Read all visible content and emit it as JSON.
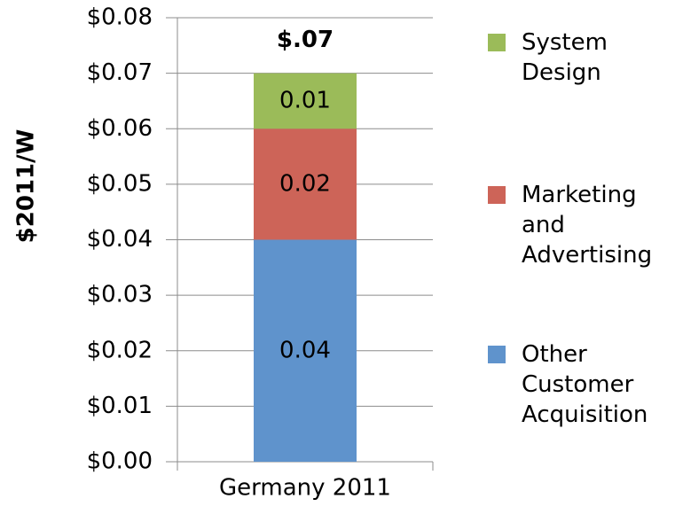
{
  "chart_data": {
    "type": "stacked_bar",
    "y_axis_label": "$2011/W",
    "total_label": "$.07",
    "categories": [
      "Germany 2011"
    ],
    "series": [
      {
        "name": "Other Customer Acquisition",
        "color": "#5f93cc",
        "values": [
          0.04
        ]
      },
      {
        "name": "Marketing and Advertising",
        "color": "#cd6458",
        "values": [
          0.02
        ]
      },
      {
        "name": "System Design",
        "color": "#9bbb59",
        "values": [
          0.01
        ]
      }
    ],
    "ylim": [
      0,
      0.08
    ],
    "yticks": [
      {
        "value": 0,
        "label": "$0.00"
      },
      {
        "value": 0.01,
        "label": "$0.01"
      },
      {
        "value": 0.02,
        "label": "$0.02"
      },
      {
        "value": 0.03,
        "label": "$0.03"
      },
      {
        "value": 0.04,
        "label": "$0.04"
      },
      {
        "value": 0.05,
        "label": "$0.05"
      },
      {
        "value": 0.06,
        "label": "$0.06"
      },
      {
        "value": 0.07,
        "label": "$0.07"
      },
      {
        "value": 0.08,
        "label": "$0.08"
      }
    ],
    "grid": true
  }
}
